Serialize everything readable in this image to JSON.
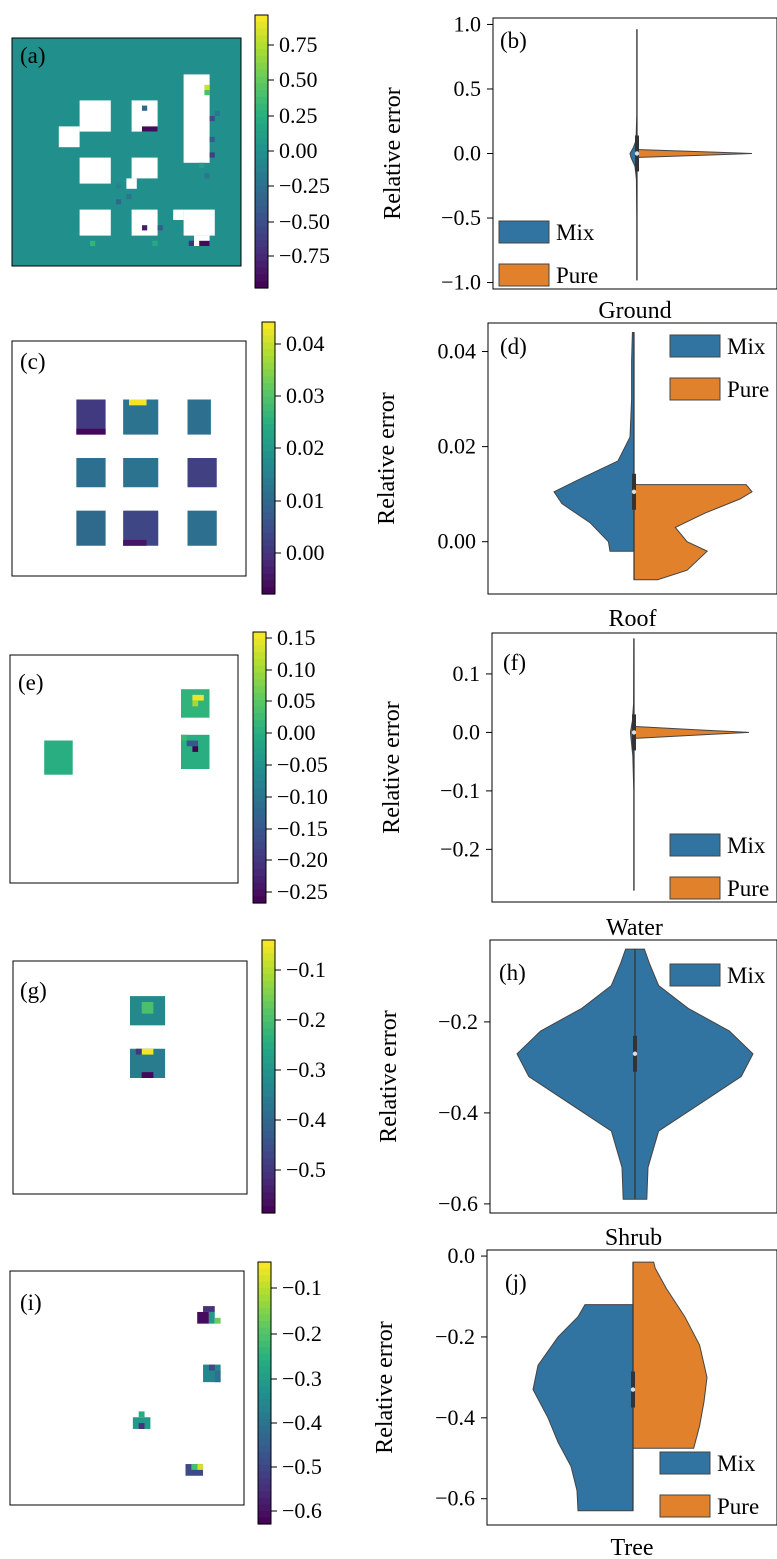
{
  "colors": {
    "mix": "#3274a1",
    "pure": "#e1812c",
    "viridis": [
      "#440154",
      "#472c7a",
      "#3b518b",
      "#2c718e",
      "#21908d",
      "#27ad81",
      "#5cc863",
      "#aadc32",
      "#fde725"
    ]
  },
  "legend": {
    "mix": "Mix",
    "pure": "Pure"
  },
  "maps": [
    {
      "id": "(a)",
      "cbar_ticks": [
        "0.75",
        "0.50",
        "0.25",
        "0.00",
        "−0.25",
        "−0.50",
        "−0.75"
      ],
      "vmin": -0.95,
      "vmax": 0.95,
      "background": "#21908d"
    },
    {
      "id": "(c)",
      "cbar_ticks": [
        "0.04",
        "0.03",
        "0.02",
        "0.01",
        "0.00"
      ],
      "vmin": -0.008,
      "vmax": 0.044
    },
    {
      "id": "(e)",
      "cbar_ticks": [
        "0.15",
        "0.10",
        "0.05",
        "0.00",
        "−0.05",
        "−0.10",
        "−0.15",
        "−0.20",
        "−0.25"
      ],
      "vmin": -0.27,
      "vmax": 0.16
    },
    {
      "id": "(g)",
      "cbar_ticks": [
        "−0.1",
        "−0.2",
        "−0.3",
        "−0.4",
        "−0.5"
      ],
      "vmin": -0.59,
      "vmax": -0.04
    },
    {
      "id": "(i)",
      "cbar_ticks": [
        "−0.1",
        "−0.2",
        "−0.3",
        "−0.4",
        "−0.5",
        "−0.6"
      ],
      "vmin": -0.64,
      "vmax": -0.01
    }
  ],
  "chart_data": [
    {
      "type": "violin",
      "id": "(b)",
      "xlabel": "Ground",
      "ylabel": "Relative error",
      "ylim": [
        -1.05,
        1.05
      ],
      "yticks": [
        "1.0",
        "0.5",
        "0.0",
        "−0.5",
        "−1.0"
      ],
      "ytick_values": [
        1.0,
        0.5,
        0.0,
        -0.5,
        -1.0
      ],
      "legend_position": "lower-left",
      "series": [
        {
          "name": "Mix",
          "range": [
            -0.98,
            0.96
          ],
          "density": [
            [
              -0.98,
              0.01
            ],
            [
              -0.5,
              0.01
            ],
            [
              -0.2,
              0.03
            ],
            [
              -0.1,
              0.1
            ],
            [
              -0.03,
              0.3
            ],
            [
              0.0,
              0.35
            ],
            [
              0.04,
              0.2
            ],
            [
              0.1,
              0.05
            ],
            [
              0.3,
              0.01
            ],
            [
              0.96,
              0.01
            ]
          ]
        },
        {
          "name": "Pure",
          "range": [
            -0.03,
            0.03
          ],
          "density": [
            [
              -0.03,
              0.02
            ],
            [
              -0.01,
              0.7
            ],
            [
              0.0,
              1.0
            ],
            [
              0.01,
              0.7
            ],
            [
              0.03,
              0.02
            ]
          ]
        }
      ]
    },
    {
      "type": "violin",
      "id": "(d)",
      "xlabel": "Roof",
      "ylabel": "Relative error",
      "ylim": [
        -0.011,
        0.046
      ],
      "yticks": [
        "0.04",
        "0.02",
        "0.00"
      ],
      "ytick_values": [
        0.04,
        0.02,
        0.0
      ],
      "legend_position": "top-right",
      "series": [
        {
          "name": "Mix",
          "range": [
            -0.002,
            0.044
          ],
          "density": [
            [
              -0.002,
              0.3
            ],
            [
              0.0,
              0.32
            ],
            [
              0.004,
              0.55
            ],
            [
              0.008,
              0.9
            ],
            [
              0.0105,
              1.0
            ],
            [
              0.013,
              0.7
            ],
            [
              0.017,
              0.2
            ],
            [
              0.022,
              0.05
            ],
            [
              0.03,
              0.03
            ],
            [
              0.038,
              0.03
            ],
            [
              0.044,
              0.02
            ]
          ]
        },
        {
          "name": "Pure",
          "range": [
            -0.008,
            0.012
          ],
          "density": [
            [
              -0.008,
              0.2
            ],
            [
              -0.006,
              0.45
            ],
            [
              -0.002,
              0.62
            ],
            [
              0.0,
              0.45
            ],
            [
              0.003,
              0.35
            ],
            [
              0.006,
              0.6
            ],
            [
              0.009,
              0.9
            ],
            [
              0.0105,
              1.0
            ],
            [
              0.012,
              0.95
            ]
          ]
        }
      ]
    },
    {
      "type": "violin",
      "id": "(f)",
      "xlabel": "Water",
      "ylabel": "Relative error",
      "ylim": [
        -0.29,
        0.17
      ],
      "yticks": [
        "0.1",
        "0.0",
        "−0.1",
        "−0.2"
      ],
      "ytick_values": [
        0.1,
        0.0,
        -0.1,
        -0.2
      ],
      "legend_position": "lower-right",
      "series": [
        {
          "name": "Mix",
          "range": [
            -0.27,
            0.16
          ],
          "density": [
            [
              -0.27,
              0.01
            ],
            [
              -0.1,
              0.01
            ],
            [
              -0.04,
              0.06
            ],
            [
              -0.01,
              0.15
            ],
            [
              0.0,
              0.18
            ],
            [
              0.02,
              0.08
            ],
            [
              0.05,
              0.02
            ],
            [
              0.16,
              0.01
            ]
          ]
        },
        {
          "name": "Pure",
          "range": [
            -0.01,
            0.01
          ],
          "density": [
            [
              -0.01,
              0.03
            ],
            [
              -0.004,
              0.6
            ],
            [
              0.0,
              1.0
            ],
            [
              0.004,
              0.6
            ],
            [
              0.01,
              0.03
            ]
          ]
        }
      ]
    },
    {
      "type": "violin",
      "id": "(h)",
      "xlabel": "Shrub",
      "ylabel": "Relative error",
      "ylim": [
        -0.62,
        -0.02
      ],
      "yticks": [
        "−0.2",
        "−0.4",
        "−0.6"
      ],
      "ytick_values": [
        -0.2,
        -0.4,
        -0.6
      ],
      "legend_position": "top-right",
      "series": [
        {
          "name": "Mix",
          "range": [
            -0.59,
            -0.04
          ],
          "density": [
            [
              -0.59,
              0.1
            ],
            [
              -0.52,
              0.11
            ],
            [
              -0.44,
              0.2
            ],
            [
              -0.38,
              0.55
            ],
            [
              -0.32,
              0.9
            ],
            [
              -0.27,
              1.0
            ],
            [
              -0.22,
              0.8
            ],
            [
              -0.17,
              0.45
            ],
            [
              -0.12,
              0.2
            ],
            [
              -0.07,
              0.12
            ],
            [
              -0.04,
              0.08
            ]
          ]
        }
      ]
    },
    {
      "type": "violin",
      "id": "(j)",
      "xlabel": "Tree",
      "ylabel": "Relative error",
      "ylim": [
        -0.665,
        0.015
      ],
      "yticks": [
        "0.0",
        "−0.2",
        "−0.4",
        "−0.6"
      ],
      "ytick_values": [
        0.0,
        -0.2,
        -0.4,
        -0.6
      ],
      "legend_position": "lower-right",
      "series": [
        {
          "name": "Mix",
          "range": [
            -0.63,
            -0.12
          ],
          "density": [
            [
              -0.63,
              0.55
            ],
            [
              -0.58,
              0.56
            ],
            [
              -0.52,
              0.62
            ],
            [
              -0.46,
              0.75
            ],
            [
              -0.4,
              0.85
            ],
            [
              -0.33,
              1.0
            ],
            [
              -0.27,
              0.95
            ],
            [
              -0.2,
              0.75
            ],
            [
              -0.15,
              0.55
            ],
            [
              -0.12,
              0.48
            ]
          ]
        },
        {
          "name": "Pure",
          "range": [
            -0.475,
            -0.015
          ],
          "density": [
            [
              -0.475,
              0.82
            ],
            [
              -0.42,
              0.9
            ],
            [
              -0.36,
              0.96
            ],
            [
              -0.3,
              1.0
            ],
            [
              -0.22,
              0.9
            ],
            [
              -0.15,
              0.7
            ],
            [
              -0.08,
              0.45
            ],
            [
              -0.03,
              0.3
            ],
            [
              -0.015,
              0.28
            ]
          ]
        }
      ]
    }
  ]
}
